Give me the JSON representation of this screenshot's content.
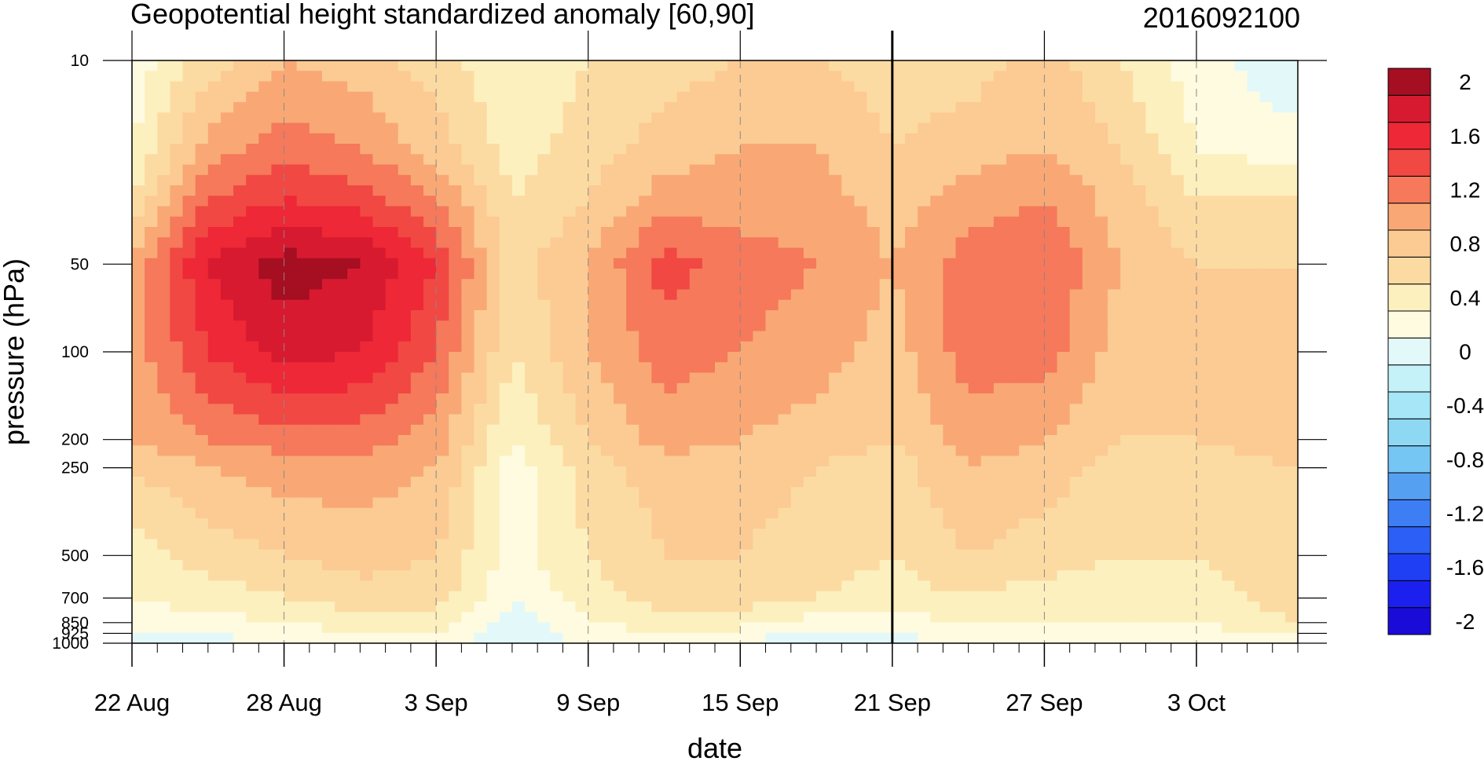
{
  "chart_data": {
    "type": "heatmap",
    "title": "Geopotential height standardized anomaly [60,90]",
    "title_right": "2016092100",
    "xlabel": "date",
    "ylabel": "pressure (hPa)",
    "x_ticks": [
      "22 Aug",
      "28 Aug",
      "3 Sep",
      "9 Sep",
      "15 Sep",
      "21 Sep",
      "27 Sep",
      "3 Oct"
    ],
    "x_range": [
      "2016-08-22",
      "2016-10-07"
    ],
    "y_scale": "log",
    "y_reversed": true,
    "y_range": [
      1000,
      10
    ],
    "y_ticks": [
      "10",
      "50",
      "100",
      "200",
      "250",
      "500",
      "700",
      "850",
      "925",
      "1000"
    ],
    "current_date_marker": "21 Sep",
    "colorbar": {
      "labels": [
        "2",
        "1.6",
        "1.2",
        "0.8",
        "0.4",
        "0",
        "-0.4",
        "-0.8",
        "-1.2",
        "-1.6",
        "-2"
      ],
      "levels": [
        -2.0,
        -1.8,
        -1.6,
        -1.4,
        -1.2,
        -1.0,
        -0.8,
        -0.6,
        -0.4,
        -0.2,
        0.0,
        0.2,
        0.4,
        0.6,
        0.8,
        1.0,
        1.2,
        1.4,
        1.6,
        1.8,
        2.0
      ],
      "colors": [
        "#1a0bd8",
        "#1b20ee",
        "#1f3ff5",
        "#2c5ff5",
        "#3e7ef5",
        "#56a0f2",
        "#76c6f4",
        "#8fd8f4",
        "#a6e6f6",
        "#c5f2f8",
        "#e3f9f9",
        "#fefbe0",
        "#fdf0bf",
        "#fcdba3",
        "#fbcb93",
        "#f9a875",
        "#f5795a",
        "#f14843",
        "#ee2836",
        "#d81a30",
        "#a60e22"
      ]
    },
    "series": [
      {
        "date": "2016-08-22",
        "values": {
          "10": 0.05,
          "20": 0.2,
          "30": 0.4,
          "50": 0.9,
          "100": 0.9,
          "200": 0.8,
          "250": 0.6,
          "500": 0.3,
          "700": 0.2,
          "850": 0.1,
          "925": 0.0,
          "1000": -0.1
        }
      },
      {
        "date": "2016-08-25",
        "values": {
          "10": 0.5,
          "20": 0.9,
          "30": 1.2,
          "50": 1.6,
          "100": 1.4,
          "200": 1.0,
          "250": 0.8,
          "500": 0.5,
          "700": 0.3,
          "850": 0.1,
          "925": 0.0,
          "1000": -0.05
        }
      },
      {
        "date": "2016-08-28",
        "values": {
          "10": 0.8,
          "20": 1.1,
          "30": 1.4,
          "50": 1.9,
          "100": 1.7,
          "200": 1.1,
          "250": 0.9,
          "500": 0.6,
          "700": 0.4,
          "850": 0.2,
          "925": 0.1,
          "1000": 0.0
        }
      },
      {
        "date": "2016-08-31",
        "values": {
          "10": 0.7,
          "20": 1.0,
          "30": 1.3,
          "50": 1.8,
          "100": 1.6,
          "200": 1.1,
          "250": 0.9,
          "500": 0.7,
          "700": 0.5,
          "850": 0.3,
          "925": 0.2,
          "1000": 0.1
        }
      },
      {
        "date": "2016-09-03",
        "values": {
          "10": 0.5,
          "20": 0.7,
          "30": 1.0,
          "50": 1.4,
          "100": 1.2,
          "200": 0.9,
          "250": 0.8,
          "500": 0.6,
          "700": 0.5,
          "850": 0.3,
          "925": 0.2,
          "1000": 0.1
        }
      },
      {
        "date": "2016-09-06",
        "values": {
          "10": 0.2,
          "20": 0.3,
          "30": 0.4,
          "50": 0.5,
          "100": 0.4,
          "200": 0.2,
          "250": 0.1,
          "500": 0.1,
          "700": 0.0,
          "850": -0.1,
          "925": -0.2,
          "1000": -0.1
        }
      },
      {
        "date": "2016-09-09",
        "values": {
          "10": 0.4,
          "20": 0.5,
          "30": 0.6,
          "50": 0.8,
          "100": 0.8,
          "200": 0.6,
          "250": 0.5,
          "500": 0.4,
          "700": 0.3,
          "850": 0.2,
          "925": 0.1,
          "1000": 0.05
        }
      },
      {
        "date": "2016-09-12",
        "values": {
          "10": 0.5,
          "20": 0.7,
          "30": 0.9,
          "50": 1.3,
          "100": 1.1,
          "200": 0.9,
          "250": 0.7,
          "500": 0.6,
          "700": 0.5,
          "850": 0.3,
          "925": 0.2,
          "1000": 0.1
        }
      },
      {
        "date": "2016-09-15",
        "values": {
          "10": 0.6,
          "20": 0.8,
          "30": 0.9,
          "50": 1.1,
          "100": 1.0,
          "200": 0.8,
          "250": 0.7,
          "500": 0.6,
          "700": 0.5,
          "850": 0.3,
          "925": 0.1,
          "1000": 0.0
        }
      },
      {
        "date": "2016-09-18",
        "values": {
          "10": 0.6,
          "20": 0.8,
          "30": 0.9,
          "50": 1.0,
          "100": 0.9,
          "200": 0.7,
          "250": 0.6,
          "500": 0.5,
          "700": 0.4,
          "850": 0.1,
          "925": -0.1,
          "1000": -0.2
        }
      },
      {
        "date": "2016-09-21",
        "values": {
          "10": 0.5,
          "20": 0.6,
          "30": 0.7,
          "50": 0.8,
          "100": 0.7,
          "200": 0.6,
          "250": 0.5,
          "500": 0.4,
          "700": 0.3,
          "850": 0.1,
          "925": 0.0,
          "1000": -0.05
        }
      },
      {
        "date": "2016-09-24",
        "values": {
          "10": 0.5,
          "20": 0.7,
          "30": 0.9,
          "50": 1.1,
          "100": 1.1,
          "200": 0.9,
          "250": 0.8,
          "500": 0.6,
          "700": 0.4,
          "850": 0.2,
          "925": 0.1,
          "1000": 0.0
        }
      },
      {
        "date": "2016-09-27",
        "values": {
          "10": 0.7,
          "20": 0.8,
          "30": 1.0,
          "50": 1.2,
          "100": 1.1,
          "200": 0.8,
          "250": 0.7,
          "500": 0.5,
          "700": 0.3,
          "850": 0.2,
          "925": 0.1,
          "1000": 0.0
        }
      },
      {
        "date": "2016-09-30",
        "values": {
          "10": 0.4,
          "20": 0.6,
          "30": 0.7,
          "50": 0.8,
          "100": 0.7,
          "200": 0.6,
          "250": 0.5,
          "500": 0.4,
          "700": 0.3,
          "850": 0.2,
          "925": 0.1,
          "1000": 0.05
        }
      },
      {
        "date": "2016-10-03",
        "values": {
          "10": 0.1,
          "20": 0.2,
          "30": 0.4,
          "50": 0.6,
          "100": 0.6,
          "200": 0.6,
          "250": 0.5,
          "500": 0.4,
          "700": 0.3,
          "850": 0.2,
          "925": 0.1,
          "1000": 0.05
        }
      },
      {
        "date": "2016-10-07",
        "values": {
          "10": -0.2,
          "20": 0.1,
          "30": 0.4,
          "50": 0.6,
          "100": 0.7,
          "200": 0.7,
          "250": 0.6,
          "500": 0.6,
          "700": 0.5,
          "850": 0.4,
          "925": 0.2,
          "1000": 0.1
        }
      }
    ]
  }
}
